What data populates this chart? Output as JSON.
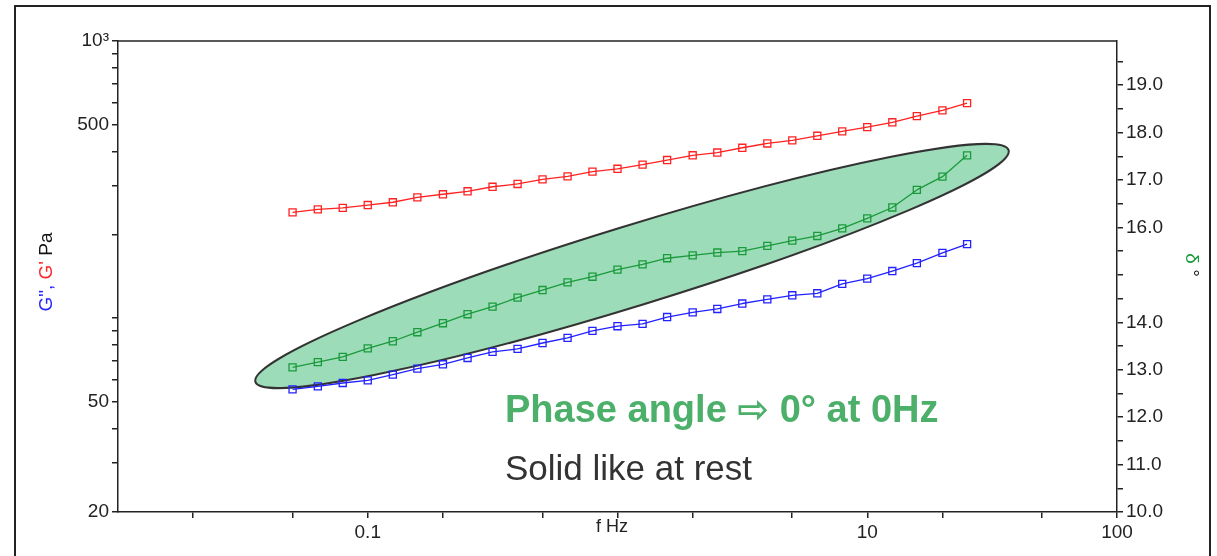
{
  "chart_data": {
    "type": "line",
    "xlabel": "f Hz",
    "ylabel": "G\", G' Pa",
    "y2label": "δ °",
    "x": [
      0.05,
      0.0631,
      0.0794,
      0.1,
      0.126,
      0.158,
      0.2,
      0.251,
      0.316,
      0.398,
      0.501,
      0.631,
      0.794,
      1,
      1.26,
      1.58,
      2,
      2.51,
      3.16,
      3.98,
      5.01,
      6.31,
      7.94,
      10,
      12.6,
      15.8,
      20,
      25.1
    ],
    "series": [
      {
        "color": "#2222ff",
        "values": [
          55.4,
          56.8,
          58.4,
          59.7,
          62.6,
          65.8,
          68.2,
          71.9,
          75.6,
          77.5,
          81.4,
          84.9,
          90.0,
          93.6,
          95.4,
          101,
          105,
          108,
          113,
          117,
          121,
          123,
          133,
          139,
          148,
          158,
          172,
          185
        ]
      },
      {
        "color": "#ff2222",
        "values": [
          241,
          247,
          250,
          256,
          262,
          273,
          280,
          287,
          298,
          305,
          317,
          325,
          338,
          346,
          358,
          372,
          387,
          396,
          412,
          427,
          438,
          455,
          472,
          489,
          509,
          536,
          562,
          597
        ]
      },
      {
        "color": "#1a9a3a",
        "axis": "y2",
        "values": [
          13.05,
          13.16,
          13.27,
          13.45,
          13.6,
          13.79,
          13.98,
          14.17,
          14.33,
          14.52,
          14.68,
          14.84,
          14.96,
          15.11,
          15.22,
          15.35,
          15.41,
          15.47,
          15.5,
          15.61,
          15.72,
          15.82,
          15.98,
          16.19,
          16.42,
          16.79,
          17.07,
          17.52
        ]
      }
    ],
    "log": "xy",
    "xlim": [
      0.01,
      100
    ],
    "xticks": [
      {
        "value": 0.02,
        "label": null
      },
      {
        "value": 0.05,
        "label": null
      },
      0.1,
      {
        "value": 0.2,
        "label": null
      },
      {
        "value": 0.5,
        "label": null
      },
      {
        "value": 1,
        "label": null
      },
      {
        "value": 2,
        "label": null
      },
      {
        "value": 5,
        "label": null
      },
      10,
      {
        "value": 20,
        "label": null
      },
      {
        "value": 50,
        "label": null
      },
      100
    ],
    "ylim": [
      20,
      1000
    ],
    "yticks": [
      20,
      {
        "value": 30,
        "label": null
      },
      {
        "value": 40,
        "label": null
      },
      50,
      {
        "value": 60,
        "label": null
      },
      {
        "value": 70,
        "label": null
      },
      {
        "value": 80,
        "label": null
      },
      {
        "value": 90,
        "label": null
      },
      {
        "value": 100,
        "label": null
      },
      {
        "value": 200,
        "label": null
      },
      {
        "value": 300,
        "label": null
      },
      {
        "value": 400,
        "label": null
      },
      500,
      {
        "value": 600,
        "label": null
      },
      {
        "value": 700,
        "label": null
      },
      {
        "value": 800,
        "label": null
      },
      {
        "value": 900,
        "label": null
      },
      {
        "value": 1000,
        "label": "10³"
      }
    ],
    "y2lim": [
      10,
      19.93
    ],
    "y2ticks": [
      {
        "value": 10,
        "label": "10.0"
      },
      {
        "value": 10.5,
        "label": null
      },
      {
        "value": 11,
        "label": "11.0"
      },
      {
        "value": 11.5,
        "label": null
      },
      {
        "value": 12,
        "label": "12.0"
      },
      {
        "value": 12.5,
        "label": null
      },
      {
        "value": 13,
        "label": "13.0"
      },
      {
        "value": 13.5,
        "label": null
      },
      {
        "value": 14,
        "label": "14.0"
      },
      {
        "value": 14.5,
        "label": null
      },
      {
        "value": 15,
        "label": null
      },
      {
        "value": 15.5,
        "label": null
      },
      {
        "value": 16,
        "label": "16.0"
      },
      {
        "value": 16.5,
        "label": null
      },
      {
        "value": 17,
        "label": "17.0"
      },
      {
        "value": 17.5,
        "label": null
      },
      {
        "value": 18,
        "label": "18.0"
      },
      {
        "value": 18.5,
        "label": null
      },
      {
        "value": 19,
        "label": "19.0"
      },
      {
        "value": 19.5,
        "label": null
      }
    ],
    "grid": false,
    "legend": false,
    "marker": "square",
    "line_style": "solid",
    "annotations": [
      "Phase angle ⇨ 0° at 0Hz",
      "Solid like at rest"
    ]
  }
}
